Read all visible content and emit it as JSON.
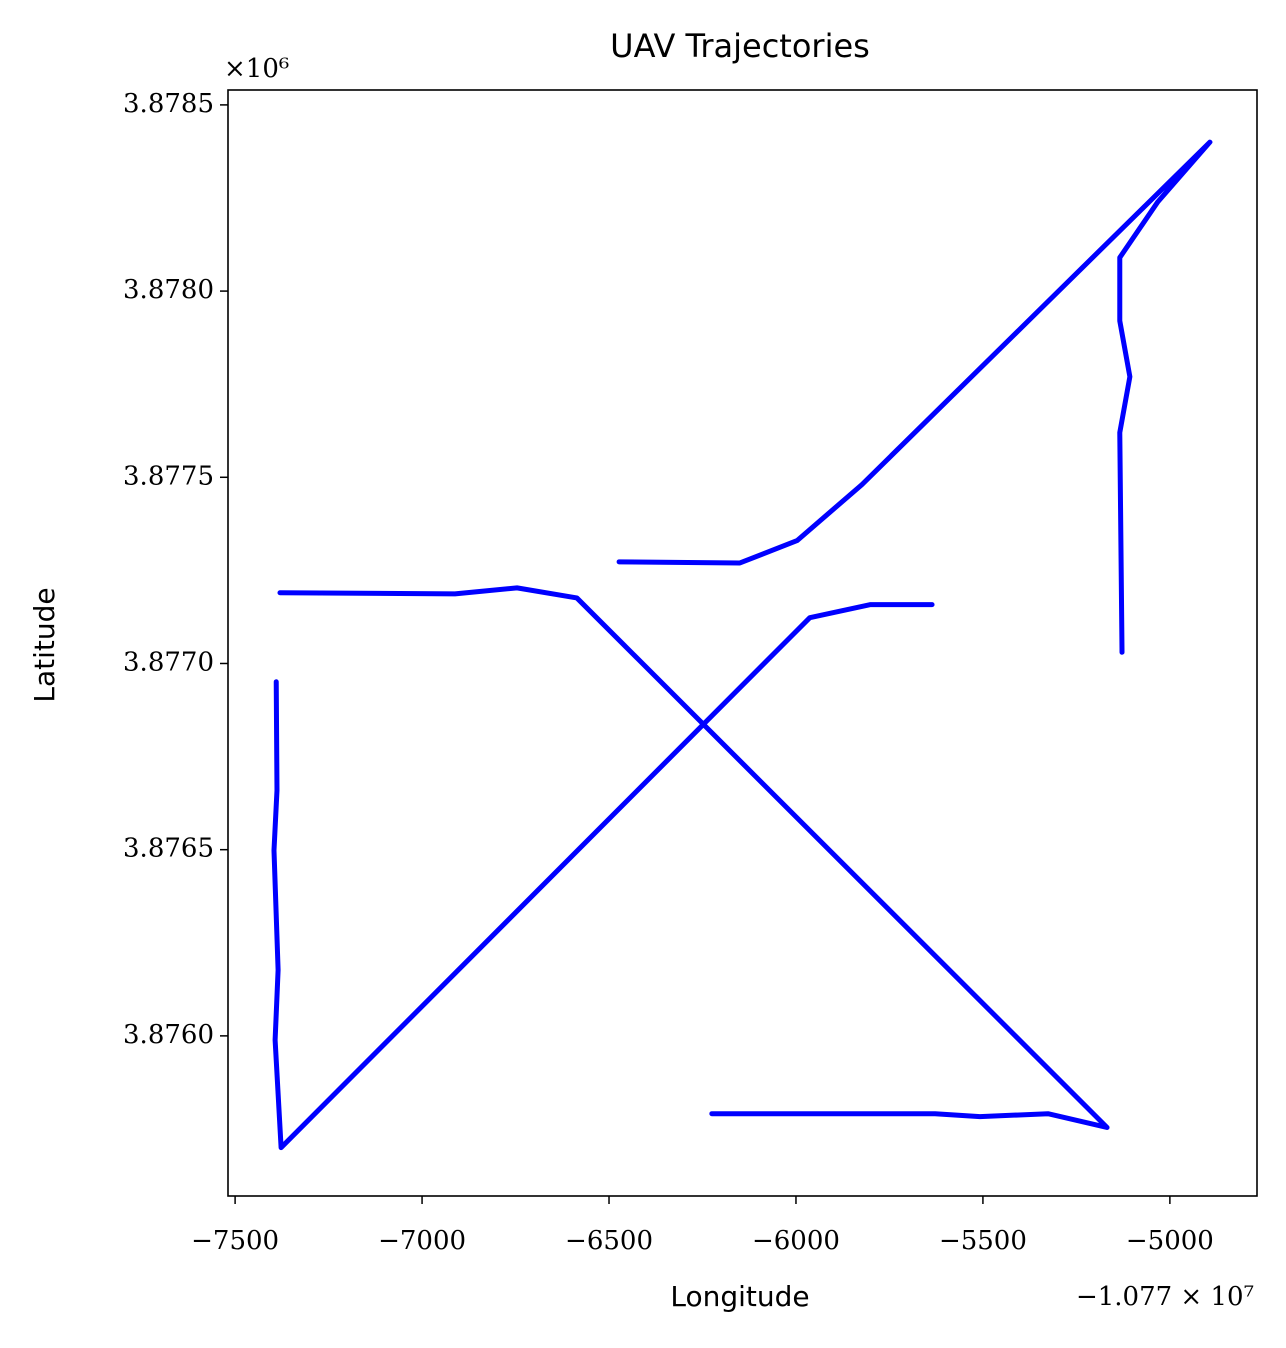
{
  "chart_data": {
    "type": "line",
    "title": "UAV Trajectories",
    "x_label": "Longitude",
    "y_label": "Latitude",
    "x_offset_text": "−1.077 × 10⁷",
    "y_offset_text": "×10⁶",
    "color": "#0000ff",
    "series": [
      {
        "x": [
          -6473,
          -6150,
          -5997,
          -5824,
          -4893,
          -5032,
          -5134,
          -5134,
          -5107,
          -5134,
          -5128
        ],
        "values": [
          3.877273,
          3.87727,
          3.87733,
          3.87748,
          3.8784,
          3.87824,
          3.87809,
          3.87792,
          3.87777,
          3.87762,
          3.87703
        ]
      },
      {
        "x": [
          -7380,
          -6912,
          -6746,
          -6586,
          -5168,
          -5326,
          -5508,
          -5628,
          -6225
        ],
        "values": [
          3.87719,
          3.877187,
          3.877203,
          3.877176,
          3.875754,
          3.875791,
          3.875783,
          3.875791,
          3.875791
        ]
      },
      {
        "x": [
          -7390,
          -7388,
          -7396,
          -7385,
          -7393,
          -7377,
          -5963,
          -5802,
          -5636
        ],
        "values": [
          3.876951,
          3.876659,
          3.876498,
          3.876177,
          3.875989,
          3.8757,
          3.877123,
          3.877158,
          3.877158
        ]
      }
    ],
    "xlim": [
      -7519,
      -4767
    ],
    "ylim": [
      3.87557,
      3.87854
    ],
    "xticks": [
      {
        "value": -7500,
        "label": "−7500"
      },
      {
        "value": -7000,
        "label": "−7000"
      },
      {
        "value": -6500,
        "label": "−6500"
      },
      {
        "value": -6000,
        "label": "−6000"
      },
      {
        "value": -5500,
        "label": "−5500"
      },
      {
        "value": -5000,
        "label": "−5000"
      }
    ],
    "yticks": [
      {
        "value": 3.876,
        "label": "3.8760"
      },
      3.8765,
      {
        "value": 3.877,
        "label": "3.8770"
      },
      3.8775,
      {
        "value": 3.878,
        "label": "3.8780"
      },
      3.8785
    ],
    "grid": false
  }
}
